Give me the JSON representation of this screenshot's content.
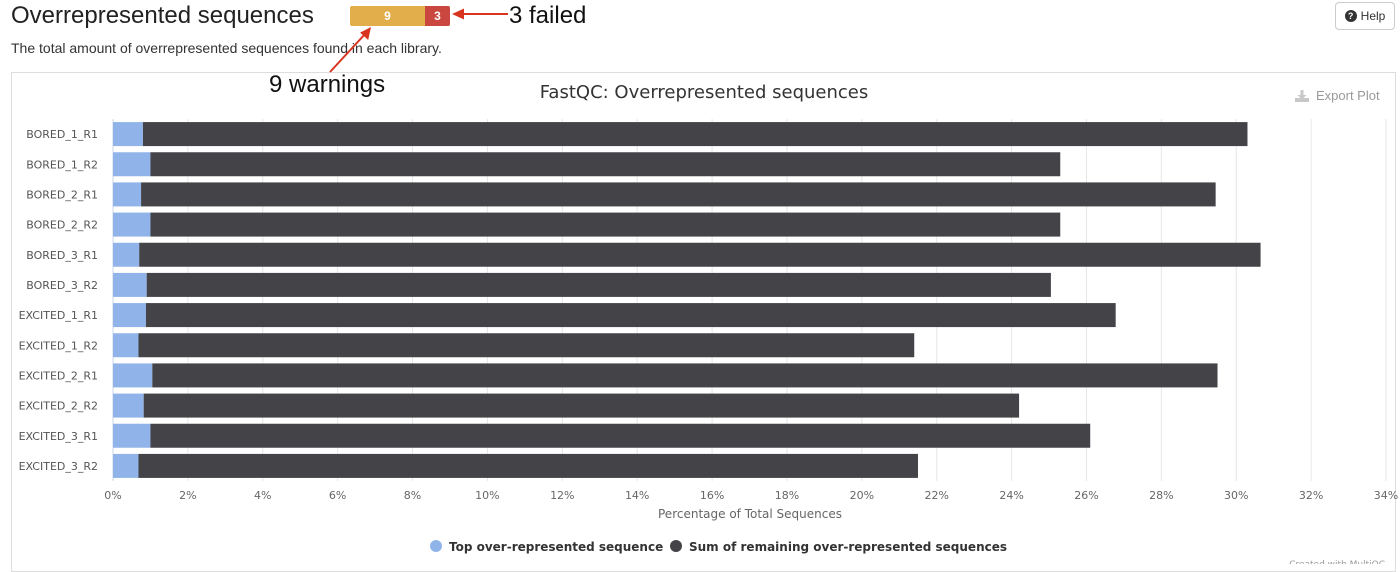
{
  "section": {
    "title": "Overrepresented sequences",
    "description": "The total amount of overrepresented sequences found in each library.",
    "status": {
      "warnings": "9",
      "failed": "3",
      "warn_color": "#e2ad4b",
      "fail_color": "#c9473f"
    },
    "help_label": "Help"
  },
  "annotations": {
    "failed": "3 failed",
    "warnings": "9 warnings",
    "arrow_color": "#d9341f"
  },
  "plot": {
    "export_label": "Export Plot",
    "credit": "Created with MultiQC"
  },
  "chart_data": {
    "type": "bar",
    "orientation": "horizontal",
    "stacked": true,
    "title": "FastQC: Overrepresented sequences",
    "xlabel": "Percentage of Total Sequences",
    "xlim": [
      0,
      34
    ],
    "xticks": [
      "0%",
      "2%",
      "4%",
      "6%",
      "8%",
      "10%",
      "12%",
      "14%",
      "16%",
      "18%",
      "20%",
      "22%",
      "24%",
      "26%",
      "28%",
      "30%",
      "32%",
      "34%"
    ],
    "grid": true,
    "legend_position": "bottom",
    "categories": [
      "BORED_1_R1",
      "BORED_1_R2",
      "BORED_2_R1",
      "BORED_2_R2",
      "BORED_3_R1",
      "BORED_3_R2",
      "EXCITED_1_R1",
      "EXCITED_1_R2",
      "EXCITED_2_R1",
      "EXCITED_2_R2",
      "EXCITED_3_R1",
      "EXCITED_3_R2"
    ],
    "series": [
      {
        "name": "Top over-represented sequence",
        "color": "#90b4e9",
        "values": [
          0.8,
          1.0,
          0.75,
          1.0,
          0.7,
          0.9,
          0.88,
          0.68,
          1.05,
          0.82,
          1.0,
          0.68
        ]
      },
      {
        "name": "Sum of remaining over-represented sequences",
        "color": "#434348",
        "values": [
          29.5,
          24.3,
          28.7,
          24.3,
          29.95,
          24.15,
          25.9,
          20.72,
          28.45,
          23.38,
          25.1,
          20.82
        ]
      }
    ]
  }
}
